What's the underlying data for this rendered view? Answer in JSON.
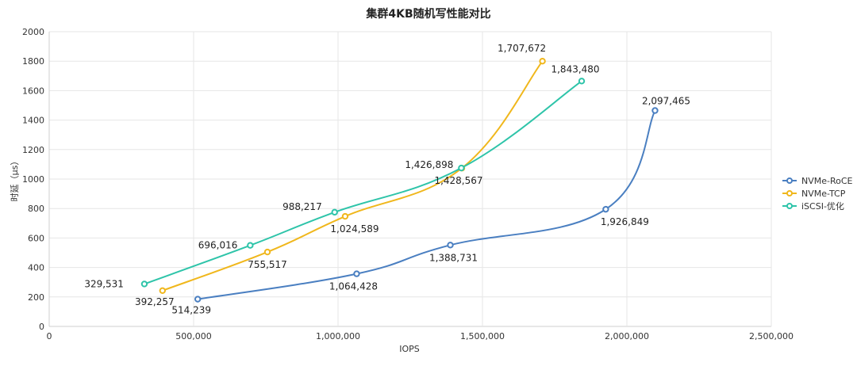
{
  "chart_data": {
    "type": "line",
    "title": "集群4KB随机写性能对比",
    "xlabel": "IOPS",
    "ylabel": "时延（µs）",
    "xlim": [
      0,
      2500000
    ],
    "ylim": [
      0,
      2000
    ],
    "x_ticks": [
      "0",
      "500,000",
      "1,000,000",
      "1,500,000",
      "2,000,000",
      "2,500,000"
    ],
    "y_ticks": [
      "0",
      "200",
      "400",
      "600",
      "800",
      "1000",
      "1200",
      "1400",
      "1600",
      "1800",
      "2000"
    ],
    "grid": true,
    "legend_position": "right",
    "series": [
      {
        "name": "NVMe-RoCE",
        "color": "#4a7fc1",
        "points": [
          {
            "x": 514239,
            "y": 185,
            "label": "514,239"
          },
          {
            "x": 1064428,
            "y": 357,
            "label": "1,064,428"
          },
          {
            "x": 1388731,
            "y": 552,
            "label": "1,388,731"
          },
          {
            "x": 1926849,
            "y": 795,
            "label": "1,926,849"
          },
          {
            "x": 2097465,
            "y": 1465,
            "label": "2,097,465"
          }
        ]
      },
      {
        "name": "NVMe-TCP",
        "color": "#f0b71c",
        "points": [
          {
            "x": 392257,
            "y": 243,
            "label": "392,257"
          },
          {
            "x": 755517,
            "y": 505,
            "label": "755,517"
          },
          {
            "x": 1024589,
            "y": 747,
            "label": "1,024,589"
          },
          {
            "x": 1428567,
            "y": 1074,
            "label": "1,428,567"
          },
          {
            "x": 1707672,
            "y": 1800,
            "label": "1,707,672"
          }
        ]
      },
      {
        "name": "iSCSI-优化",
        "color": "#2ec4a9",
        "points": [
          {
            "x": 329531,
            "y": 288,
            "label": "329,531"
          },
          {
            "x": 696016,
            "y": 550,
            "label": "696,016"
          },
          {
            "x": 988217,
            "y": 775,
            "label": "988,217"
          },
          {
            "x": 1426898,
            "y": 1075,
            "label": "1,426,898"
          },
          {
            "x": 1843480,
            "y": 1665,
            "label": "1,843,480"
          }
        ]
      }
    ]
  }
}
